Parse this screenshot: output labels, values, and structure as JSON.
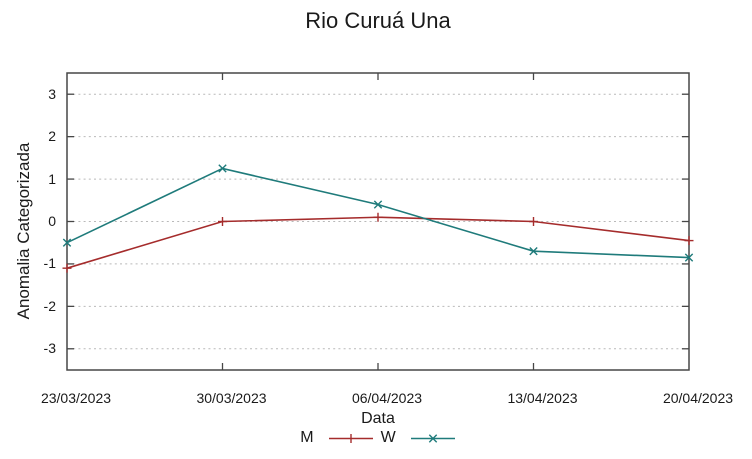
{
  "chart_data": {
    "type": "line",
    "title": "Rio Curuá Una",
    "xlabel": "Data",
    "ylabel": "Anomalia Categorizada",
    "categories": [
      "23/03/2023",
      "30/03/2023",
      "06/04/2023",
      "13/04/2023",
      "20/04/2023"
    ],
    "series": [
      {
        "name": "M",
        "marker": "plus",
        "color": "#a52c2c",
        "values": [
          -1.1,
          0.0,
          0.1,
          0.0,
          -0.45
        ]
      },
      {
        "name": "W",
        "marker": "cross",
        "color": "#1f7b7b",
        "values": [
          -0.5,
          1.25,
          0.4,
          -0.7,
          -0.85
        ]
      }
    ],
    "yticks": [
      3,
      2,
      1,
      0,
      -1,
      -2,
      -3
    ],
    "ylim": [
      -3.5,
      3.5
    ],
    "grid": true,
    "legend_position": "bottom-center",
    "colors": {
      "grid": "#b9b9b9",
      "border": "#474747",
      "text": "#1a1a1a"
    }
  }
}
